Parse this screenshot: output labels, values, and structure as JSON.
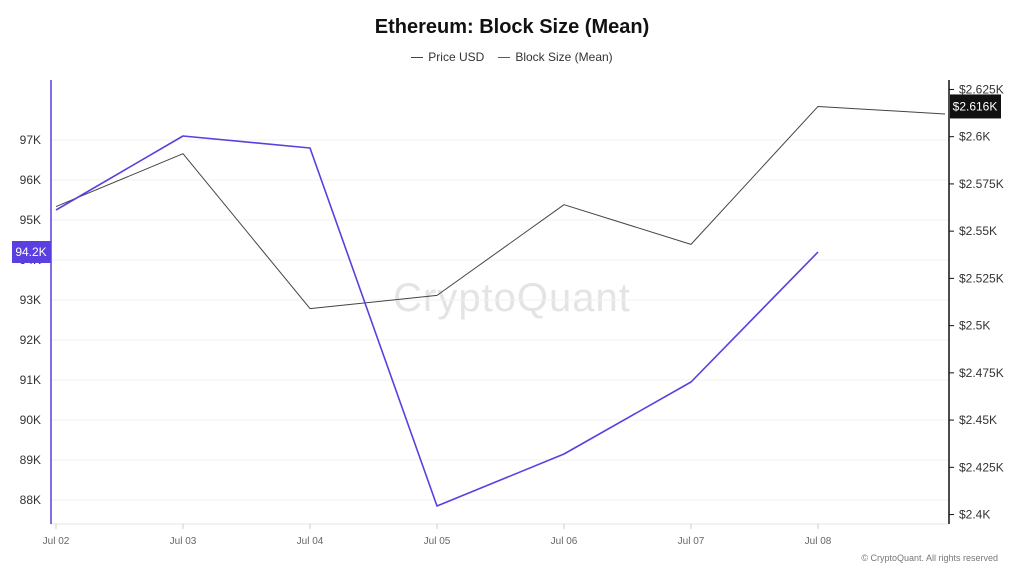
{
  "header": {
    "title": "Ethereum: Block Size (Mean)",
    "credit": "© CryptoQuant. All rights reserved",
    "watermark": "CryptoQuant"
  },
  "colors": {
    "price": "#444444",
    "block_size": "#5b3fe0",
    "left_axis": "#5b3fe0",
    "right_axis": "#111111",
    "grid": "#f0f0f0"
  },
  "chart_data": {
    "type": "line",
    "title": "Ethereum: Block Size (Mean)",
    "x": [
      "Jul 02",
      "Jul 03",
      "Jul 04",
      "Jul 05",
      "Jul 06",
      "Jul 07",
      "Jul 08",
      ""
    ],
    "x_ticks": [
      "Jul 02",
      "Jul 03",
      "Jul 04",
      "Jul 05",
      "Jul 06",
      "Jul 07",
      "Jul 08"
    ],
    "series": [
      {
        "name": "Price USD",
        "axis": "right",
        "values": [
          2563,
          2591,
          2509,
          2516,
          2564,
          2543,
          2616,
          2612
        ]
      },
      {
        "name": "Block Size (Mean)",
        "axis": "left",
        "values": [
          95250,
          97100,
          96800,
          87850,
          89150,
          90950,
          94200,
          null
        ]
      }
    ],
    "left_axis": {
      "ticks": [
        "88K",
        "89K",
        "90K",
        "91K",
        "92K",
        "93K",
        "94K",
        "95K",
        "96K",
        "97K"
      ],
      "tick_values": [
        88000,
        89000,
        90000,
        91000,
        92000,
        93000,
        94000,
        95000,
        96000,
        97000
      ],
      "ylim": [
        87400,
        98500
      ],
      "badge": "94.2K",
      "badge_value": 94200
    },
    "right_axis": {
      "ticks": [
        "$2.4K",
        "$2.425K",
        "$2.45K",
        "$2.475K",
        "$2.5K",
        "$2.525K",
        "$2.55K",
        "$2.575K",
        "$2.6K",
        "$2.625K"
      ],
      "tick_values": [
        2400,
        2425,
        2450,
        2475,
        2500,
        2525,
        2550,
        2575,
        2600,
        2625
      ],
      "ylim": [
        2395,
        2630
      ],
      "badge": "$2.616K",
      "badge_value": 2616
    },
    "grid": true,
    "legend": "top-center"
  }
}
